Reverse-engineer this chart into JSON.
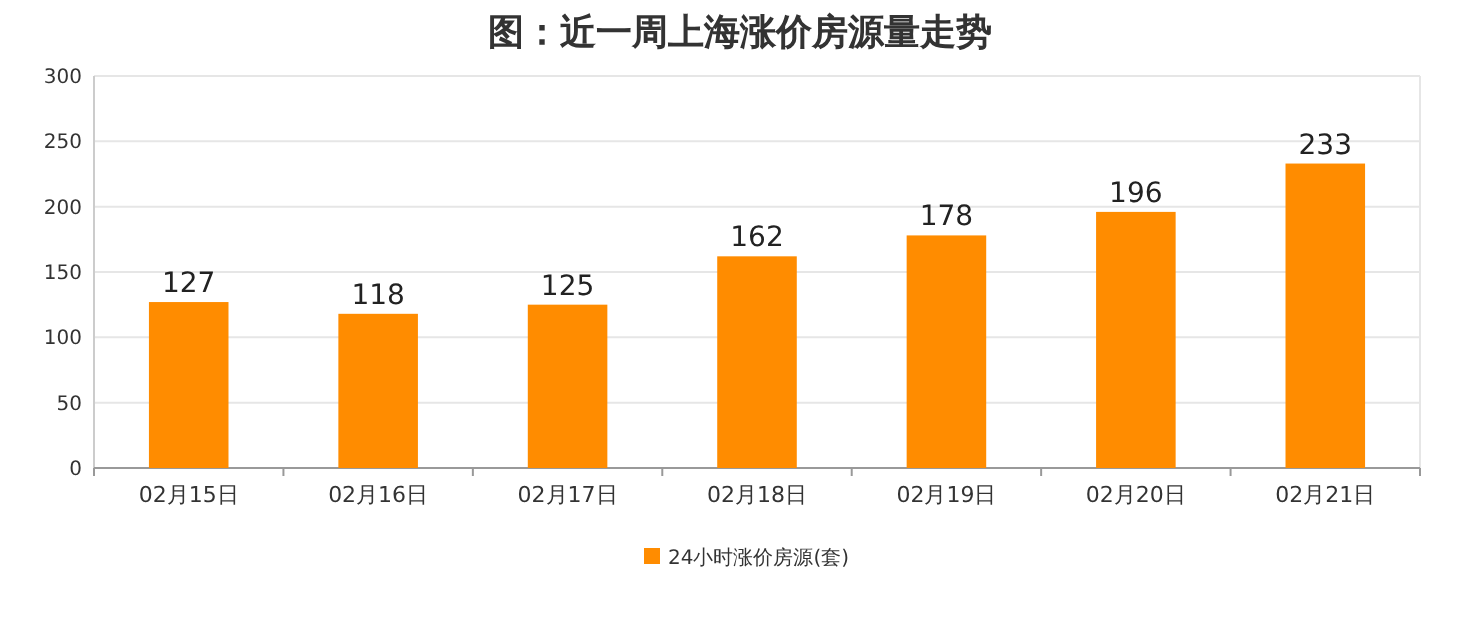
{
  "chart_data": {
    "type": "bar",
    "title": "图：近一周上海涨价房源量走势",
    "categories": [
      "02月15日",
      "02月16日",
      "02月17日",
      "02月18日",
      "02月19日",
      "02月20日",
      "02月21日"
    ],
    "series": [
      {
        "name": "24小时涨价房源(套)",
        "color": "#ff8c00",
        "values": [
          127,
          118,
          125,
          162,
          178,
          196,
          233
        ]
      }
    ],
    "ylim": [
      0,
      300
    ],
    "yticks": [
      0,
      50,
      100,
      150,
      200,
      250,
      300
    ],
    "grid": "y",
    "legend": "bottom",
    "data_labels": true
  }
}
